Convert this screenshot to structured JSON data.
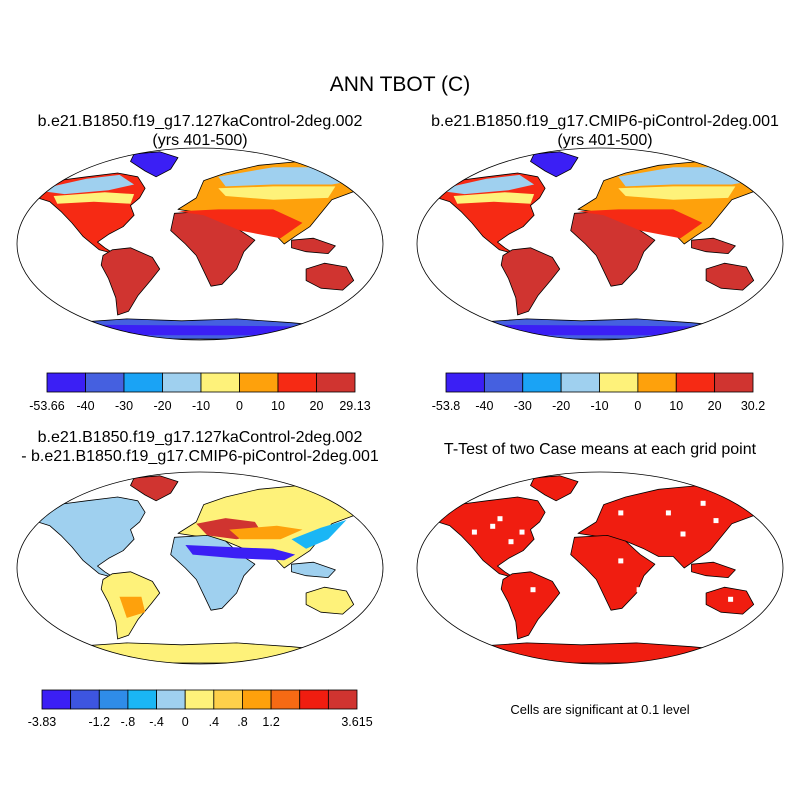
{
  "figure": {
    "title": "ANN TBOT (C)",
    "panels": [
      {
        "title_line1": "b.e21.B1850.f19_g17.127kaControl-2deg.002",
        "title_line2": "(yrs 401-500)"
      },
      {
        "title_line1": "b.e21.B1850.f19_g17.CMIP6-piControl-2deg.001",
        "title_line2": "(yrs 401-500)"
      },
      {
        "title_line1": "b.e21.B1850.f19_g17.127kaControl-2deg.002",
        "title_line2": "- b.e21.B1850.f19_g17.CMIP6-piControl-2deg.001"
      },
      {
        "title_line1": "T-Test of two Case means at each grid point"
      }
    ],
    "significance_note": "Cells are significant at 0.1 level"
  },
  "colorbars": [
    {
      "colors": [
        "#3b1ff5",
        "#4560e0",
        "#1aa3f5",
        "#9fd0ef",
        "#fef27a",
        "#fea10c",
        "#f62a14",
        "#d03430"
      ],
      "labels": [
        "-53.66",
        "-40",
        "-30",
        "-20",
        "-10",
        "0",
        "10",
        "20",
        "29.13"
      ]
    },
    {
      "colors": [
        "#3b1ff5",
        "#4560e0",
        "#1aa3f5",
        "#9fd0ef",
        "#fef27a",
        "#fea10c",
        "#f62a14",
        "#d03430"
      ],
      "labels": [
        "-53.8",
        "-40",
        "-30",
        "-20",
        "-10",
        "0",
        "10",
        "20",
        "30.2"
      ]
    },
    {
      "colors": [
        "#3b1ff5",
        "#3d55e0",
        "#2f8ce8",
        "#1ab6f5",
        "#9fd0ef",
        "#fef27a",
        "#fed04a",
        "#fea10c",
        "#f66a14",
        "#f01d10",
        "#d03430"
      ],
      "labels": [
        "-3.83",
        "-1.2",
        "-.8",
        "-.4",
        "0",
        ".4",
        ".8",
        "1.2",
        "3.615"
      ],
      "label_slots": [
        0,
        2,
        3,
        4,
        5,
        6,
        7,
        8,
        11
      ]
    }
  ],
  "land_colors": {
    "panel1": {
      "arctic": "#9fd0ef",
      "boreal": "#fef27a",
      "temperate": "#fea10c",
      "tropics": "#d03430",
      "hot": "#f62a14",
      "antarctica": "#4560e0",
      "antarctica_coast": "#3b1ff5",
      "greenland": "#3b1ff5"
    },
    "panel3": {
      "base": "#9fd0ef",
      "warm": "#fef27a",
      "hot": "#fea10c",
      "strong": "#d03430",
      "cold": "#3b1ff5",
      "coolish": "#1ab6f5",
      "antarctica": "#fef27a"
    },
    "panel4": {
      "significant": "#f01d10"
    }
  }
}
